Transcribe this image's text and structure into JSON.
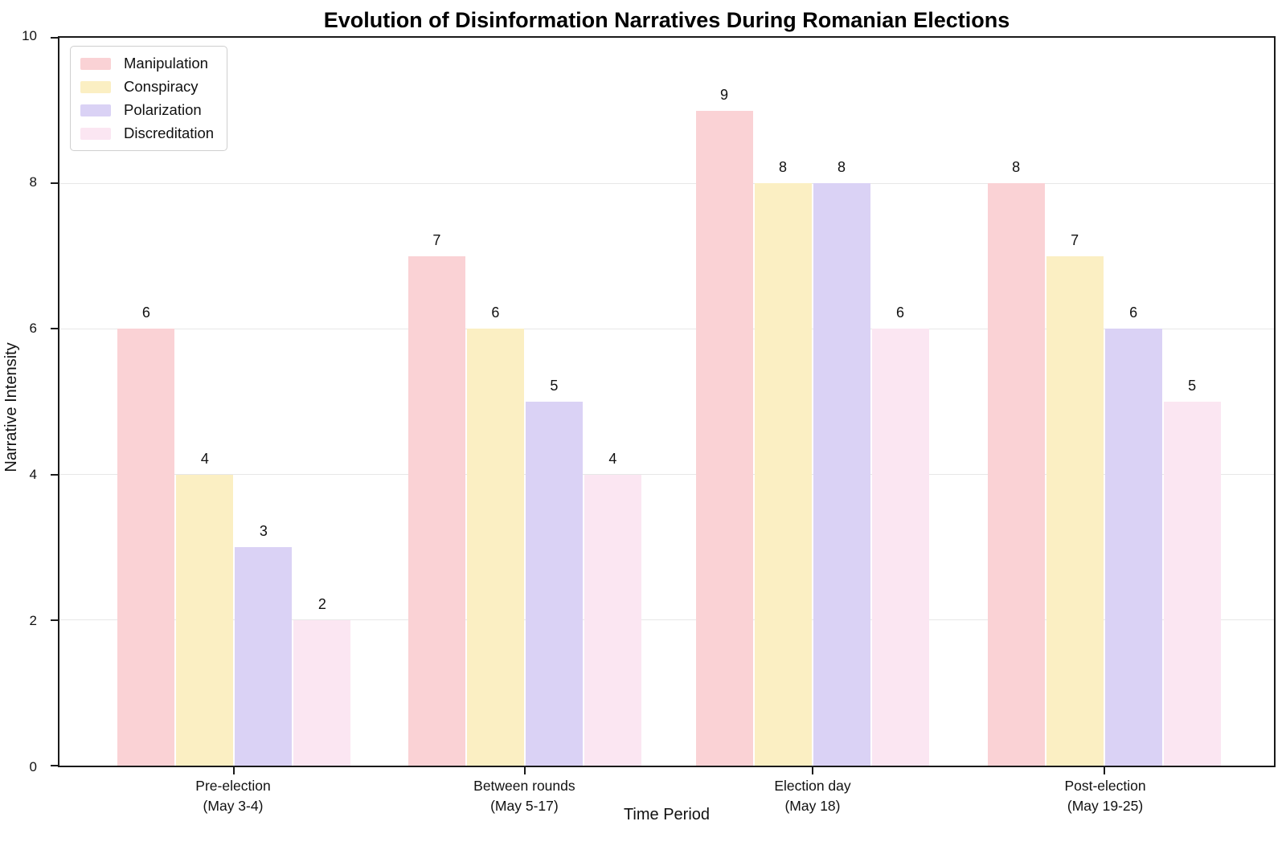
{
  "chart_data": {
    "type": "bar",
    "title": "Evolution of Disinformation Narratives During Romanian Elections",
    "xlabel": "Time Period",
    "ylabel": "Narrative Intensity",
    "ylim": [
      0,
      10
    ],
    "yticks": [
      0,
      2,
      4,
      6,
      8,
      10
    ],
    "grid": true,
    "legend_position": "upper left",
    "categories": [
      {
        "line1": "Pre-election",
        "line2": "(May 3-4)"
      },
      {
        "line1": "Between rounds",
        "line2": "(May 5-17)"
      },
      {
        "line1": "Election day",
        "line2": "(May 18)"
      },
      {
        "line1": "Post-election",
        "line2": "(May 19-25)"
      }
    ],
    "series": [
      {
        "name": "Manipulation",
        "color": "#FAD2D5",
        "values": [
          6,
          7,
          9,
          8
        ]
      },
      {
        "name": "Conspiracy",
        "color": "#FBEFC3",
        "values": [
          4,
          6,
          8,
          7
        ]
      },
      {
        "name": "Polarization",
        "color": "#DAD2F5",
        "values": [
          3,
          5,
          8,
          6
        ]
      },
      {
        "name": "Discreditation",
        "color": "#FBE6F2",
        "values": [
          2,
          4,
          6,
          5
        ]
      }
    ]
  }
}
